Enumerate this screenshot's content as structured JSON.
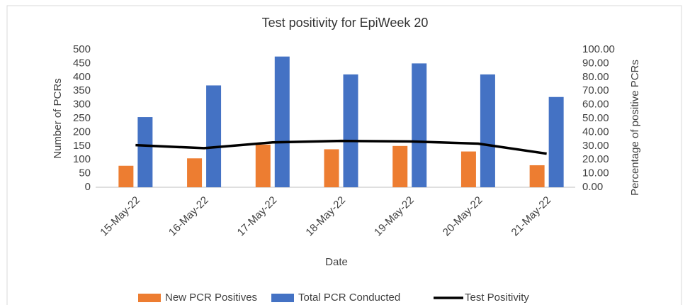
{
  "chart_data": {
    "type": "bar",
    "title": "Test positivity for EpiWeek 20",
    "x_label": "Date",
    "y_label": "Number of PCRs",
    "y2_label": "Percentage of positive PCRs",
    "categories": [
      "15-May-22",
      "16-May-22",
      "17-May-22",
      "18-May-22",
      "19-May-22",
      "20-May-22",
      "21-May-22"
    ],
    "series": [
      {
        "name": "New PCR Positives",
        "type": "bar",
        "color": "#ed7d31",
        "values": [
          78,
          105,
          155,
          138,
          150,
          130,
          80
        ]
      },
      {
        "name": "Total PCR Conducted",
        "type": "bar",
        "color": "#4472c4",
        "values": [
          255,
          370,
          475,
          410,
          450,
          410,
          328
        ]
      },
      {
        "name": "Test Positivity",
        "type": "line",
        "axis": "y2",
        "color": "#000000",
        "values": [
          30.6,
          28.4,
          32.6,
          33.7,
          33.3,
          31.7,
          24.4
        ]
      }
    ],
    "ylim": [
      0,
      500
    ],
    "yticks": [
      0,
      50,
      100,
      150,
      200,
      250,
      300,
      350,
      400,
      450,
      500
    ],
    "y2lim": [
      0,
      100
    ],
    "y2ticks": [
      {
        "value": 0,
        "label": "0.00"
      },
      {
        "value": 10,
        "label": "10.00"
      },
      {
        "value": 20,
        "label": "20.00"
      },
      {
        "value": 30,
        "label": "30.00"
      },
      {
        "value": 40,
        "label": "40.00"
      },
      {
        "value": 50,
        "label": "50.00"
      },
      {
        "value": 60,
        "label": "60.00"
      },
      {
        "value": 70,
        "label": "70.00"
      },
      {
        "value": 80,
        "label": "80.00"
      },
      {
        "value": 90,
        "label": "90.00"
      },
      {
        "value": 100,
        "label": "100.00"
      }
    ],
    "legend": "bottom"
  }
}
